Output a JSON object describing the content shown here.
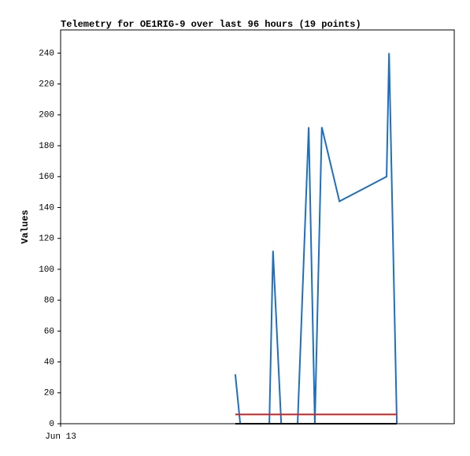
{
  "chart_data": {
    "type": "line",
    "title": "Telemetry for OE1RIG-9 over last 96 hours (19 points)",
    "y_label": "Values",
    "xlim": [
      0,
      96
    ],
    "xticks": [
      {
        "value": 0,
        "label": "Jun 13"
      }
    ],
    "ylim": [
      0,
      255
    ],
    "yticks": [
      0,
      20,
      40,
      60,
      80,
      100,
      120,
      140,
      160,
      180,
      200,
      220,
      240
    ],
    "series": [
      {
        "color": "#1f6fbf",
        "x": [
          42.6,
          43.8,
          50.9,
          51.8,
          53.8,
          57.8,
          60.5,
          62.0,
          63.7,
          68.0,
          79.5,
          80.1,
          82.0
        ],
        "values": [
          32,
          0,
          0,
          112,
          0,
          0,
          192,
          0,
          192,
          144,
          160,
          240,
          0
        ]
      },
      {
        "color": "#e02020",
        "x": [
          42.6,
          82.0
        ],
        "values": [
          6,
          6
        ]
      },
      {
        "color": "#000000",
        "x": [
          42.6,
          82.0
        ],
        "values": [
          0,
          0
        ]
      }
    ]
  }
}
